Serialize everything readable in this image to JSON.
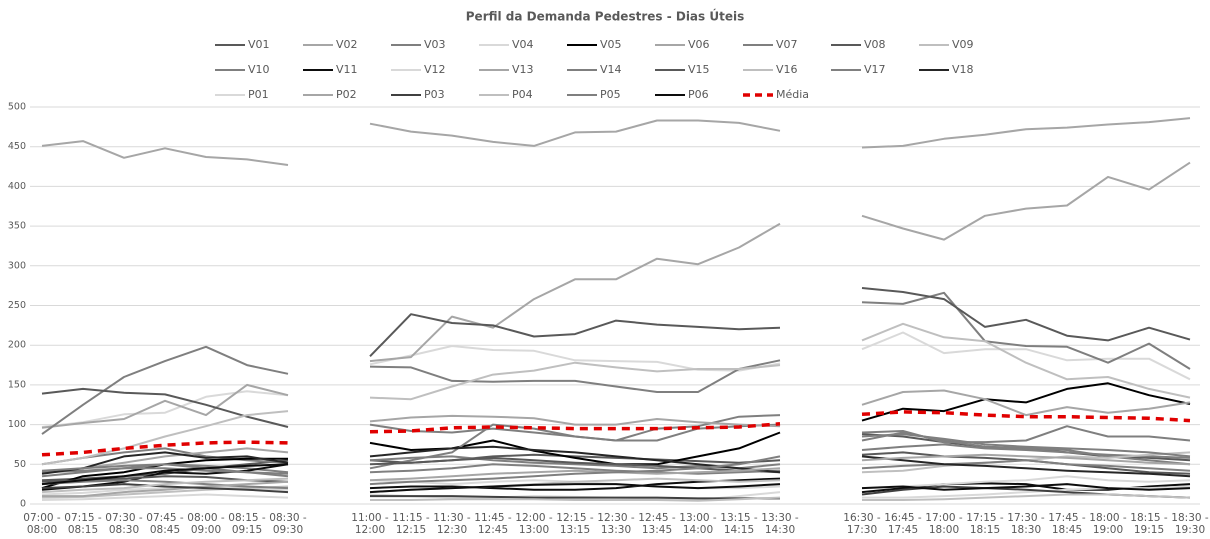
{
  "chart_data": {
    "type": "line",
    "title": "Perfil da Demanda Pedestres - Dias Úteis",
    "categories": [
      "07:00 - 08:00",
      "07:15 - 08:15",
      "07:30 - 08:30",
      "07:45 - 08:45",
      "08:00 - 09:00",
      "08:15 - 09:15",
      "08:30 - 09:30",
      null,
      "11:00 - 12:00",
      "11:15 - 12:15",
      "11:30 - 12:30",
      "11:45 - 12:45",
      "12:00 - 13:00",
      "12:15 - 13:15",
      "12:30 - 13:30",
      "12:45 - 13:45",
      "13:00 - 14:00",
      "13:15 - 14:15",
      "13:30 - 14:30",
      null,
      "16:30 - 17:30",
      "16:45 - 17:45",
      "17:00 - 18:00",
      "17:15 - 18:15",
      "17:30 - 18:30",
      "17:45 - 18:45",
      "18:00 - 19:00",
      "18:15 - 19:15",
      "18:30 - 19:30"
    ],
    "ylim": [
      0,
      500
    ],
    "yticks": [
      0,
      50,
      100,
      150,
      200,
      250,
      300,
      350,
      400,
      450,
      500
    ],
    "grid": true,
    "legend": "top",
    "series": [
      {
        "name": "V01",
        "color": "#595959",
        "values": [
          30,
          32,
          35,
          38,
          45,
          50,
          55,
          null,
          55,
          52,
          55,
          60,
          62,
          60,
          58,
          56,
          54,
          52,
          55,
          null,
          88,
          85,
          78,
          72,
          70,
          65,
          60,
          58,
          55
        ]
      },
      {
        "name": "V02",
        "color": "#a6a6a6",
        "values": [
          451,
          457,
          436,
          448,
          437,
          434,
          427,
          null,
          479,
          469,
          464,
          456,
          451,
          468,
          469,
          483,
          483,
          480,
          470,
          null,
          449,
          451,
          460,
          465,
          472,
          474,
          478,
          481,
          486
        ]
      },
      {
        "name": "V03",
        "color": "#7f7f7f",
        "values": [
          50,
          58,
          65,
          70,
          60,
          55,
          52,
          null,
          100,
          92,
          90,
          95,
          90,
          85,
          80,
          80,
          95,
          98,
          100,
          null,
          80,
          90,
          80,
          72,
          70,
          68,
          60,
          55,
          50
        ]
      },
      {
        "name": "V04",
        "color": "#d9d9d9",
        "values": [
          97,
          103,
          113,
          115,
          135,
          142,
          137,
          null,
          176,
          187,
          199,
          194,
          193,
          181,
          180,
          179,
          169,
          168,
          177,
          null,
          195,
          216,
          190,
          195,
          195,
          181,
          183,
          183,
          157
        ]
      },
      {
        "name": "V05",
        "color": "#000000",
        "values": [
          20,
          35,
          40,
          50,
          55,
          57,
          57,
          null,
          77,
          68,
          70,
          80,
          67,
          58,
          50,
          50,
          60,
          70,
          90,
          null,
          105,
          120,
          117,
          132,
          128,
          145,
          152,
          137,
          126
        ]
      },
      {
        "name": "V06",
        "color": "#a6a6a6",
        "values": [
          96,
          102,
          107,
          130,
          112,
          150,
          137,
          null,
          180,
          185,
          236,
          222,
          258,
          283,
          283,
          309,
          302,
          323,
          353,
          null,
          363,
          347,
          333,
          363,
          372,
          376,
          412,
          396,
          430
        ]
      },
      {
        "name": "V07",
        "color": "#7f7f7f",
        "values": [
          88,
          125,
          160,
          180,
          198,
          175,
          164,
          null,
          173,
          172,
          155,
          154,
          155,
          155,
          148,
          141,
          141,
          170,
          181,
          null,
          254,
          252,
          266,
          205,
          199,
          198,
          178,
          202,
          170
        ]
      },
      {
        "name": "V08",
        "color": "#595959",
        "values": [
          139,
          145,
          140,
          138,
          125,
          110,
          97,
          null,
          186,
          239,
          228,
          225,
          211,
          214,
          231,
          226,
          223,
          220,
          222,
          null,
          272,
          267,
          258,
          223,
          232,
          212,
          206,
          222,
          207
        ]
      },
      {
        "name": "V09",
        "color": "#bfbfbf",
        "values": [
          50,
          58,
          70,
          85,
          98,
          112,
          117,
          null,
          134,
          132,
          148,
          163,
          168,
          178,
          172,
          167,
          170,
          170,
          175,
          null,
          206,
          227,
          210,
          205,
          178,
          157,
          160,
          145,
          134
        ]
      },
      {
        "name": "V10",
        "color": "#7f7f7f",
        "values": [
          35,
          40,
          45,
          50,
          48,
          45,
          40,
          null,
          45,
          55,
          65,
          100,
          95,
          85,
          80,
          95,
          98,
          110,
          112,
          null,
          90,
          92,
          78,
          78,
          80,
          98,
          85,
          85,
          80
        ]
      },
      {
        "name": "V11",
        "color": "#0d0d0d",
        "values": [
          18,
          22,
          28,
          40,
          38,
          42,
          50,
          null,
          20,
          22,
          22,
          20,
          18,
          18,
          20,
          25,
          28,
          30,
          32,
          null,
          15,
          20,
          25,
          26,
          25,
          18,
          18,
          22,
          25
        ]
      },
      {
        "name": "V12",
        "color": "#d9d9d9",
        "values": [
          12,
          14,
          18,
          20,
          22,
          20,
          18,
          null,
          30,
          28,
          25,
          28,
          30,
          28,
          25,
          22,
          20,
          20,
          22,
          null,
          20,
          22,
          25,
          28,
          30,
          35,
          30,
          28,
          30
        ]
      },
      {
        "name": "V13",
        "color": "#a6a6a6",
        "values": [
          40,
          45,
          52,
          60,
          65,
          70,
          65,
          null,
          104,
          109,
          111,
          110,
          108,
          100,
          100,
          107,
          103,
          100,
          98,
          null,
          125,
          141,
          143,
          132,
          112,
          122,
          115,
          120,
          128
        ]
      },
      {
        "name": "V14",
        "color": "#7f7f7f",
        "values": [
          40,
          42,
          45,
          45,
          42,
          40,
          38,
          null,
          55,
          58,
          60,
          55,
          52,
          50,
          48,
          45,
          48,
          45,
          50,
          null,
          68,
          72,
          75,
          70,
          68,
          65,
          62,
          60,
          58
        ]
      },
      {
        "name": "V15",
        "color": "#595959",
        "values": [
          28,
          30,
          32,
          35,
          34,
          30,
          28,
          null,
          50,
          52,
          55,
          58,
          55,
          52,
          50,
          48,
          45,
          42,
          40,
          null,
          62,
          65,
          60,
          58,
          55,
          50,
          45,
          40,
          38
        ]
      },
      {
        "name": "V16",
        "color": "#bfbfbf",
        "values": [
          8,
          9,
          12,
          15,
          18,
          20,
          22,
          null,
          15,
          18,
          20,
          22,
          25,
          28,
          30,
          32,
          30,
          28,
          30,
          null,
          40,
          42,
          48,
          52,
          55,
          60,
          58,
          62,
          65
        ]
      },
      {
        "name": "V17",
        "color": "#808080",
        "values": [
          25,
          28,
          30,
          28,
          25,
          22,
          20,
          null,
          40,
          42,
          45,
          50,
          48,
          45,
          42,
          40,
          38,
          40,
          42,
          null,
          45,
          48,
          50,
          52,
          55,
          50,
          48,
          45,
          42
        ]
      },
      {
        "name": "V18",
        "color": "#262626",
        "values": [
          38,
          45,
          60,
          65,
          58,
          60,
          52,
          null,
          60,
          65,
          70,
          72,
          68,
          65,
          60,
          55,
          50,
          45,
          40,
          null,
          60,
          55,
          50,
          48,
          45,
          42,
          40,
          38,
          35
        ]
      },
      {
        "name": "P01",
        "color": "#d9d9d9",
        "values": [
          5,
          6,
          8,
          10,
          12,
          10,
          8,
          null,
          12,
          10,
          8,
          8,
          10,
          9,
          8,
          7,
          5,
          10,
          15,
          null,
          8,
          8,
          10,
          12,
          15,
          18,
          20,
          20,
          22
        ]
      },
      {
        "name": "P02",
        "color": "#a6a6a6",
        "values": [
          10,
          10,
          15,
          18,
          22,
          25,
          28,
          null,
          30,
          32,
          35,
          38,
          40,
          42,
          40,
          38,
          40,
          42,
          45,
          null,
          55,
          58,
          60,
          62,
          60,
          58,
          55,
          52,
          50
        ]
      },
      {
        "name": "P03",
        "color": "#404040",
        "values": [
          20,
          22,
          25,
          22,
          20,
          18,
          15,
          null,
          10,
          10,
          10,
          9,
          8,
          8,
          8,
          8,
          7,
          7,
          7,
          null,
          12,
          18,
          22,
          20,
          18,
          15,
          12,
          10,
          8
        ]
      },
      {
        "name": "P04",
        "color": "#bfbfbf",
        "values": [
          15,
          18,
          20,
          25,
          28,
          30,
          32,
          null,
          5,
          5,
          6,
          6,
          6,
          5,
          5,
          5,
          4,
          6,
          8,
          null,
          5,
          5,
          6,
          8,
          10,
          12,
          12,
          10,
          8
        ]
      },
      {
        "name": "P05",
        "color": "#7f7f7f",
        "values": [
          42,
          45,
          48,
          50,
          45,
          40,
          35,
          null,
          25,
          28,
          30,
          32,
          35,
          38,
          40,
          42,
          45,
          50,
          60,
          null,
          85,
          88,
          82,
          75,
          72,
          70,
          68,
          65,
          60
        ]
      },
      {
        "name": "P06",
        "color": "#0d0d0d",
        "values": [
          25,
          30,
          35,
          42,
          45,
          48,
          50,
          null,
          15,
          18,
          20,
          22,
          24,
          25,
          25,
          22,
          20,
          22,
          25,
          null,
          20,
          22,
          18,
          20,
          22,
          25,
          20,
          18,
          20
        ]
      },
      {
        "name": "Média",
        "color": "#e00000",
        "line_style": "dashed",
        "values": [
          62,
          65,
          70,
          74,
          77,
          78,
          77,
          null,
          91,
          92,
          96,
          97,
          96,
          95,
          95,
          95,
          96,
          97,
          101,
          null,
          113,
          116,
          115,
          112,
          110,
          110,
          109,
          108,
          105
        ]
      }
    ]
  }
}
